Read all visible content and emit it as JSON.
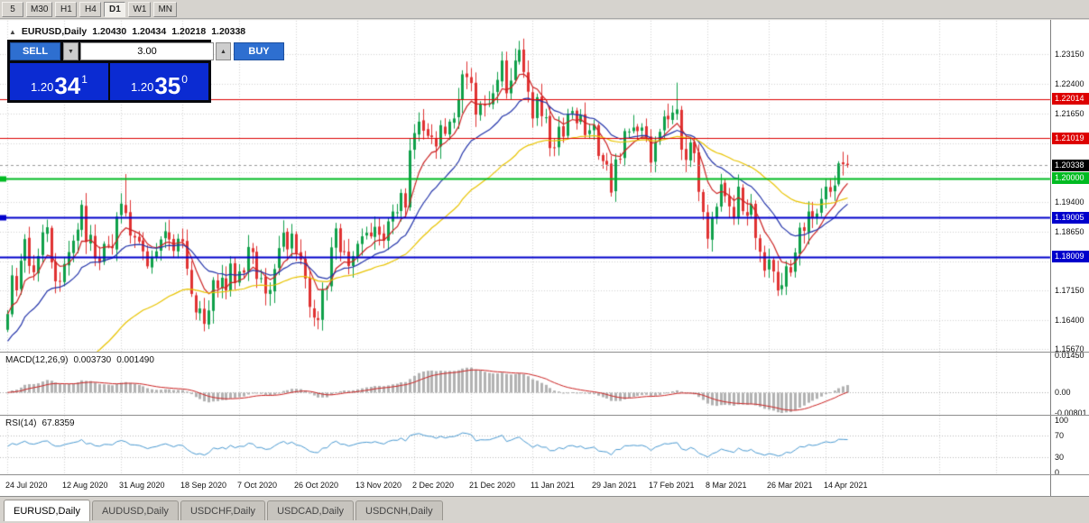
{
  "toolbar": {
    "timeframes": [
      {
        "label": "5"
      },
      {
        "label": "M30"
      },
      {
        "label": "H1"
      },
      {
        "label": "H4"
      },
      {
        "label": "D1",
        "active": true
      },
      {
        "label": "W1"
      },
      {
        "label": "MN"
      }
    ]
  },
  "chart_header": {
    "collapse_icon": "▲",
    "symbol": "EURUSD,Daily",
    "open": "1.20430",
    "high": "1.20434",
    "low": "1.20218",
    "close": "1.20338"
  },
  "trade_panel": {
    "sell_label": "SELL",
    "buy_label": "BUY",
    "volume": "3.00",
    "vol_down_icon": "▼",
    "vol_up_icon": "▲",
    "bid": {
      "prefix": "1.20",
      "big": "34",
      "sup": "1"
    },
    "ask": {
      "prefix": "1.20",
      "big": "35",
      "sup": "0"
    }
  },
  "price_axis": {
    "ticks": [
      "1.23150",
      "1.22400",
      "1.21650",
      "1.20900",
      "1.20150",
      "1.19400",
      "1.18650",
      "1.17900",
      "1.17150",
      "1.16400",
      "1.15670"
    ]
  },
  "levels": {
    "hlines": [
      {
        "value": 1.22014,
        "label": "1.22014",
        "color": "#dd0000",
        "width": 1
      },
      {
        "value": 1.21019,
        "label": "1.21019",
        "color": "#dd0000",
        "width": 1
      },
      {
        "value": 1.2,
        "label": "1.20000",
        "color": "#00bb22",
        "width": 2,
        "edge_marker": true
      },
      {
        "value": 1.19005,
        "label": "1.19005",
        "color": "#0000cc",
        "width": 2,
        "edge_marker": true
      },
      {
        "value": 1.18009,
        "label": "1.18009",
        "color": "#0000cc",
        "width": 2
      }
    ],
    "current": {
      "value": 1.20338,
      "label": "1.20338",
      "bg": "#000000"
    }
  },
  "indicators": {
    "macd": {
      "label": "MACD(12,26,9)",
      "value_main": "0.003730",
      "value_signal": "0.001490",
      "axis": [
        {
          "t": "0.01450",
          "v": 0.0145
        },
        {
          "t": "0.00",
          "v": 0
        },
        {
          "t": "-0.00801",
          "v": -0.00801
        }
      ]
    },
    "rsi": {
      "label": "RSI(14)",
      "value": "67.8359",
      "axis": [
        {
          "t": "100",
          "v": 100
        },
        {
          "t": "70",
          "v": 70
        },
        {
          "t": "30",
          "v": 30
        },
        {
          "t": "0",
          "v": 0
        }
      ]
    }
  },
  "time_axis": {
    "labels": [
      {
        "t": "24 Jul 2020",
        "i": 0
      },
      {
        "t": "12 Aug 2020",
        "i": 13
      },
      {
        "t": "31 Aug 2020",
        "i": 26
      },
      {
        "t": "18 Sep 2020",
        "i": 40
      },
      {
        "t": "7 Oct 2020",
        "i": 53
      },
      {
        "t": "26 Oct 2020",
        "i": 66
      },
      {
        "t": "13 Nov 2020",
        "i": 80
      },
      {
        "t": "2 Dec 2020",
        "i": 93
      },
      {
        "t": "21 Dec 2020",
        "i": 106
      },
      {
        "t": "11 Jan 2021",
        "i": 120
      },
      {
        "t": "29 Jan 2021",
        "i": 134
      },
      {
        "t": "17 Feb 2021",
        "i": 147
      },
      {
        "t": "8 Mar 2021",
        "i": 160
      },
      {
        "t": "26 Mar 2021",
        "i": 174
      },
      {
        "t": "14 Apr 2021",
        "i": 187
      }
    ]
  },
  "tabs": [
    {
      "label": "EURUSD,Daily",
      "active": true
    },
    {
      "label": "AUDUSD,Daily"
    },
    {
      "label": "USDCHF,Daily"
    },
    {
      "label": "USDCAD,Daily"
    },
    {
      "label": "USDCNH,Daily"
    }
  ],
  "chart_data": {
    "type": "candlestick",
    "symbol": "EURUSD",
    "timeframe": "Daily",
    "current_ohlc": {
      "open": 1.2043,
      "high": 1.20434,
      "low": 1.20218,
      "close": 1.20338
    },
    "y_range": [
      1.1565,
      1.2384
    ],
    "closes": [
      1.1656,
      1.1754,
      1.1716,
      1.1791,
      1.1846,
      1.1778,
      1.1762,
      1.1803,
      1.1863,
      1.1876,
      1.1787,
      1.1739,
      1.174,
      1.1783,
      1.1813,
      1.1842,
      1.187,
      1.1933,
      1.1839,
      1.1857,
      1.1797,
      1.1786,
      1.1834,
      1.183,
      1.1823,
      1.1903,
      1.1936,
      1.1912,
      1.1855,
      1.185,
      1.184,
      1.1815,
      1.1777,
      1.1801,
      1.1815,
      1.1845,
      1.1866,
      1.1845,
      1.1816,
      1.1847,
      1.184,
      1.1771,
      1.1707,
      1.166,
      1.167,
      1.1631,
      1.1665,
      1.1742,
      1.1721,
      1.1748,
      1.1716,
      1.1784,
      1.1735,
      1.1764,
      1.1761,
      1.1826,
      1.1813,
      1.1745,
      1.1747,
      1.1708,
      1.1717,
      1.177,
      1.1823,
      1.1862,
      1.182,
      1.186,
      1.181,
      1.1794,
      1.1746,
      1.1674,
      1.1647,
      1.1641,
      1.1718,
      1.1723,
      1.1825,
      1.1873,
      1.1813,
      1.1815,
      1.1778,
      1.1803,
      1.1834,
      1.1853,
      1.1862,
      1.1853,
      1.1877,
      1.1857,
      1.1842,
      1.1891,
      1.1916,
      1.1914,
      1.1963,
      1.1926,
      1.2071,
      1.2115,
      1.2144,
      1.2121,
      1.2108,
      1.2105,
      1.2081,
      1.2135,
      1.2113,
      1.2144,
      1.2152,
      1.22,
      1.2264,
      1.2257,
      1.2242,
      1.2162,
      1.2189,
      1.2187,
      1.219,
      1.2216,
      1.225,
      1.2299,
      1.2216,
      1.2248,
      1.2299,
      1.2326,
      1.227,
      1.222,
      1.2152,
      1.2206,
      1.2158,
      1.2155,
      1.2077,
      1.2078,
      1.2131,
      1.2106,
      1.2163,
      1.2171,
      1.214,
      1.216,
      1.211,
      1.2122,
      1.2136,
      1.2057,
      1.2044,
      1.2035,
      1.1964,
      1.2048,
      1.205,
      1.212,
      1.2119,
      1.2129,
      1.212,
      1.2129,
      1.2104,
      1.204,
      1.2092,
      1.2118,
      1.2157,
      1.215,
      1.2167,
      1.2175,
      1.2073,
      1.2047,
      1.2091,
      1.2064,
      1.1966,
      1.1915,
      1.1847,
      1.19,
      1.1928,
      1.1985,
      1.1955,
      1.1929,
      1.1899,
      1.1979,
      1.1917,
      1.1905,
      1.1935,
      1.1849,
      1.1814,
      1.1766,
      1.1794,
      1.1764,
      1.1716,
      1.1729,
      1.1777,
      1.1761,
      1.1812,
      1.1875,
      1.1867,
      1.1916,
      1.1899,
      1.1911,
      1.1948,
      1.1979,
      1.1966,
      1.1982,
      1.2038,
      1.2036,
      1.20338
    ],
    "extremes": {
      "27": {
        "h": 1.2011
      },
      "45": {
        "l": 1.1612
      },
      "117": {
        "h": 1.2349
      },
      "153": {
        "h": 1.2243
      },
      "177": {
        "l": 1.1704
      }
    },
    "moving_averages": [
      {
        "period": 8,
        "color": "#cc2222",
        "seed": 1.1656
      },
      {
        "period": 21,
        "color": "#2233aa",
        "seed": 1.158
      },
      {
        "period": 48,
        "color": "#e9c400",
        "seed": 1.12
      }
    ],
    "macd": {
      "fast": 12,
      "slow": 26,
      "signal": 9,
      "range": [
        -0.00801,
        0.0145
      ],
      "hist_color": "#b2b2b2",
      "signal_color": "#cc2222"
    },
    "rsi": {
      "period": 14,
      "levels": [
        70,
        30
      ],
      "line_color": "#4a9ad2"
    },
    "candle_colors": {
      "up": "#0fa04a",
      "down": "#e03232"
    }
  }
}
